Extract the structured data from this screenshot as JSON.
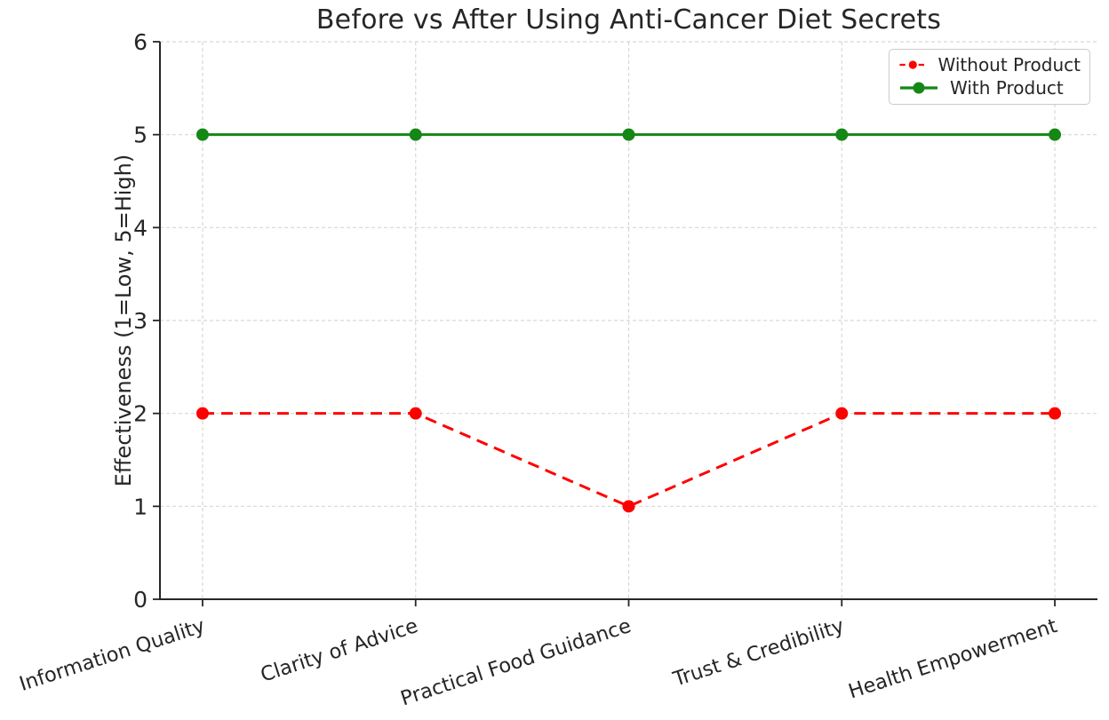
{
  "chart_data": {
    "type": "line",
    "title": "Before vs After Using Anti-Cancer Diet Secrets",
    "xlabel": "",
    "ylabel": "Effectiveness (1=Low, 5=High)",
    "categories": [
      "Information Quality",
      "Clarity of Advice",
      "Practical Food Guidance",
      "Trust & Credibility",
      "Health Empowerment"
    ],
    "series": [
      {
        "name": "Without Product",
        "values": [
          2,
          2,
          1,
          2,
          2
        ],
        "color": "#ff0000",
        "line_style": "dashed",
        "marker": "circle"
      },
      {
        "name": "With Product",
        "values": [
          5,
          5,
          5,
          5,
          5
        ],
        "color": "#148714",
        "line_style": "solid",
        "marker": "circle"
      }
    ],
    "ylim": [
      0,
      6
    ],
    "yticks": [
      0,
      1,
      2,
      3,
      4,
      5,
      6
    ],
    "grid": true,
    "grid_color": "#d7d7d7",
    "axis_color": "#262626",
    "text_color": "#262626",
    "legend_position": "upper right"
  }
}
